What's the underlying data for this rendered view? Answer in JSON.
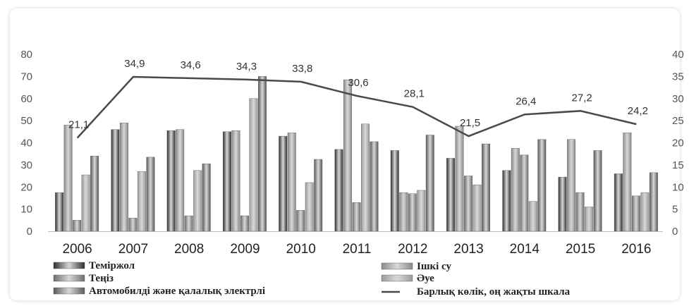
{
  "chart_data": {
    "type": "bar",
    "categories": [
      "2006",
      "2007",
      "2008",
      "2009",
      "2010",
      "2011",
      "2012",
      "2013",
      "2014",
      "2015",
      "2016"
    ],
    "series": [
      {
        "name": "Теміржол",
        "values": [
          17.5,
          46,
          45.5,
          45,
          43,
          37,
          36.5,
          33,
          27.5,
          24.5,
          26
        ],
        "color": "#2f2f2f"
      },
      {
        "name": "Ішкі су",
        "values": [
          48,
          49,
          46,
          45.5,
          44.5,
          68.5,
          17.5,
          47.5,
          37.5,
          41.5,
          44.5
        ],
        "color": "#8a8a8a"
      },
      {
        "name": "Теңіз",
        "values": [
          5,
          6,
          7,
          7,
          9.5,
          13,
          17,
          25,
          34.5,
          17.5,
          16
        ],
        "color": "#6e6e6e"
      },
      {
        "name": "Әуе",
        "values": [
          25.5,
          27,
          27.5,
          60,
          22,
          48.5,
          18.5,
          21,
          13.5,
          11,
          17.5
        ],
        "color": "#9c9c9c"
      },
      {
        "name": "Автомобилді және қалалық электрлі",
        "values": [
          34,
          33.5,
          30.5,
          70,
          32.5,
          40.5,
          43.5,
          39.5,
          41.5,
          36.5,
          26.5
        ],
        "color": "#5a5a5a"
      },
      {
        "name": "Барлық көлік, оң жақты шкала",
        "type": "line",
        "axis": "right",
        "values": [
          21.1,
          34.9,
          34.6,
          34.3,
          33.8,
          30.6,
          28.1,
          21.5,
          26.4,
          27.2,
          24.2
        ],
        "labels": [
          "21,1",
          "34,9",
          "34,6",
          "34,3",
          "33,8",
          "30,6",
          "28,1",
          "21,5",
          "26,4",
          "27,2",
          "24,2"
        ],
        "color": "#4a4a4a"
      }
    ],
    "ylim": [
      0,
      80
    ],
    "yticks": [
      "0",
      "10",
      "20",
      "30",
      "40",
      "50",
      "60",
      "70",
      "80"
    ],
    "y2lim": [
      0,
      40
    ],
    "y2ticks": [
      "0",
      "5",
      "10",
      "15",
      "20",
      "25",
      "30",
      "35",
      "40"
    ],
    "legend": "bottom",
    "grid": false
  }
}
